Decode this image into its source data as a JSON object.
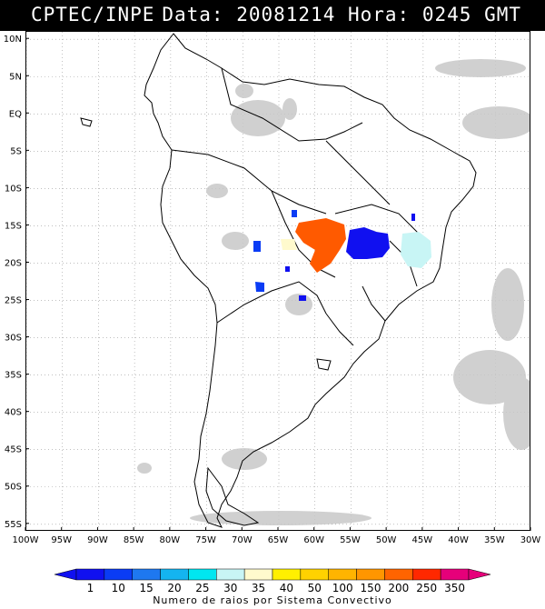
{
  "header": {
    "source": "CPTEC/INPE",
    "datetime": "Data: 20081214 Hora: 0245 GMT"
  },
  "map": {
    "lat_labels": [
      "10N",
      "5N",
      "EQ",
      "5S",
      "10S",
      "15S",
      "20S",
      "25S",
      "30S",
      "35S",
      "40S",
      "45S",
      "50S",
      "55S"
    ],
    "lon_labels": [
      "100W",
      "95W",
      "90W",
      "85W",
      "80W",
      "75W",
      "70W",
      "65W",
      "60W",
      "55W",
      "50W",
      "45W",
      "40W",
      "35W",
      "30W"
    ],
    "lat_range": [
      11,
      -56
    ],
    "lon_range": [
      -100,
      -30
    ]
  },
  "legend": {
    "title": "Numero de raios por Sistema Convectivo",
    "bins": [
      {
        "label": "1",
        "color": "#1010f0"
      },
      {
        "label": "10",
        "color": "#0a3cf5"
      },
      {
        "label": "15",
        "color": "#1e78f0"
      },
      {
        "label": "20",
        "color": "#14b4f0"
      },
      {
        "label": "25",
        "color": "#00e6f0"
      },
      {
        "label": "30",
        "color": "#c8f5f5"
      },
      {
        "label": "35",
        "color": "#fffacd"
      },
      {
        "label": "40",
        "color": "#fff000"
      },
      {
        "label": "50",
        "color": "#ffd200"
      },
      {
        "label": "100",
        "color": "#ffb400"
      },
      {
        "label": "150",
        "color": "#ff9600"
      },
      {
        "label": "200",
        "color": "#ff6400"
      },
      {
        "label": "250",
        "color": "#ff2800"
      },
      {
        "label": "350",
        "color": "#e6007a"
      }
    ]
  },
  "colors": {
    "cloud": "#c8c8c8",
    "land_outline": "#000000"
  }
}
